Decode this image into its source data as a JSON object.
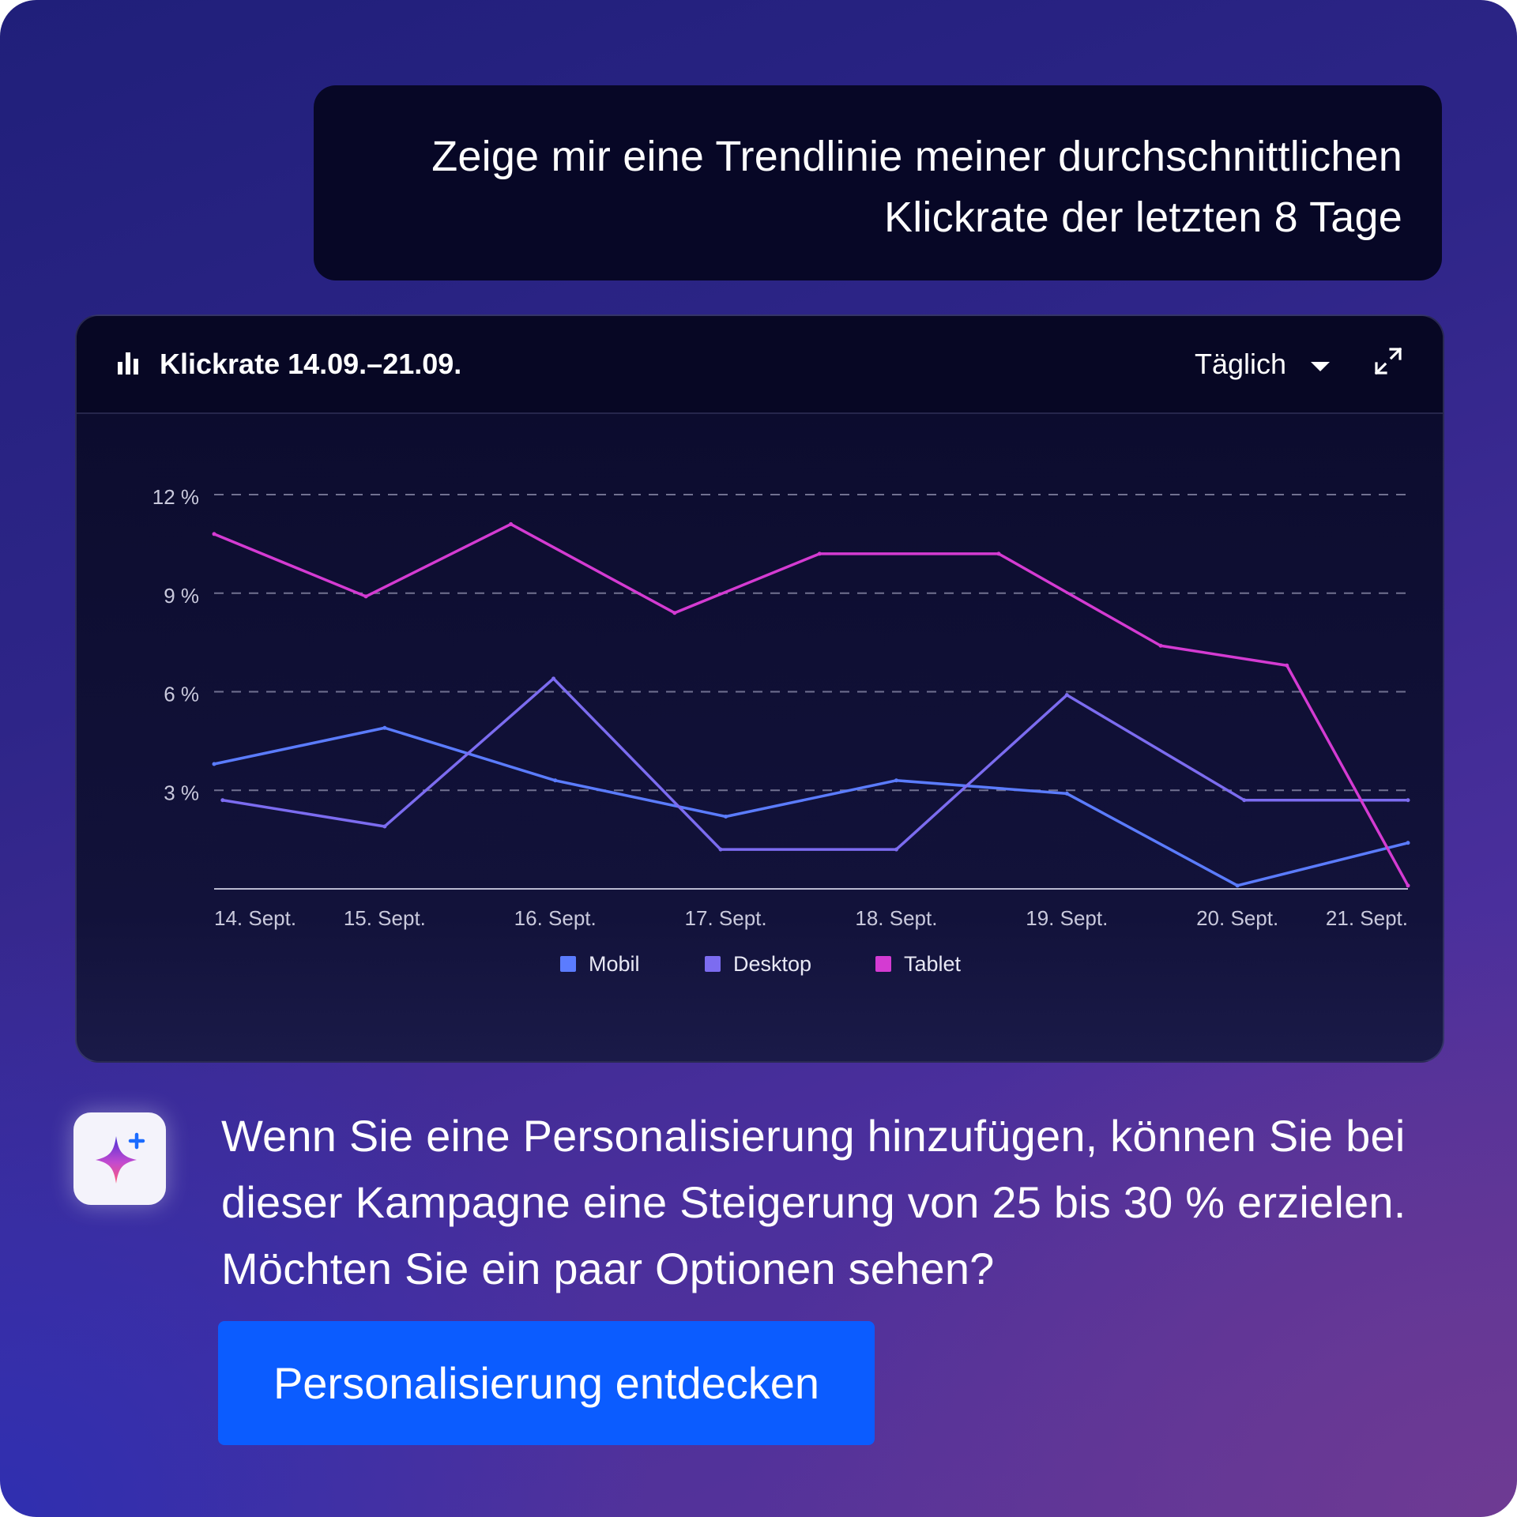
{
  "prompt": {
    "line1": "Zeige mir eine Trendlinie meiner durchschnittlichen",
    "line2": "Klickrate der letzten 8 Tage"
  },
  "chart_card": {
    "title": "Klickrate 14.09.–21.09.",
    "period_label": "Täglich",
    "icons": [
      "bar-chart-icon",
      "chevron-down-icon",
      "expand-icon"
    ]
  },
  "chart_data": {
    "type": "line",
    "title": "Klickrate 14.09.–21.09.",
    "xlabel": "",
    "ylabel": "",
    "categories": [
      "14. Sept.",
      "15. Sept.",
      "16. Sept.",
      "17. Sept.",
      "18. Sept.",
      "19. Sept.",
      "20. Sept.",
      "21. Sept."
    ],
    "y_ticks": [
      "3 %",
      "6 %",
      "9 %",
      "12 %"
    ],
    "ylim": [
      0,
      12
    ],
    "grid": true,
    "legend_position": "bottom-center",
    "series": [
      {
        "name": "Mobil",
        "color": "#5b7cff",
        "x": [
          0,
          1,
          2,
          3,
          4,
          5,
          6,
          7
        ],
        "values": [
          3.8,
          4.9,
          3.3,
          2.2,
          3.3,
          2.9,
          0.1,
          1.4
        ]
      },
      {
        "name": "Desktop",
        "color": "#7c6cf0",
        "x": [
          0.05,
          1.0,
          1.99,
          2.97,
          4.0,
          5.0,
          6.04,
          7.0
        ],
        "values": [
          2.7,
          1.9,
          6.4,
          1.2,
          1.2,
          5.9,
          2.7,
          2.7
        ]
      },
      {
        "name": "Tablet",
        "color": "#d43bd2",
        "x": [
          0,
          0.89,
          1.74,
          2.7,
          3.55,
          4.6,
          5.55,
          6.29,
          7.0
        ],
        "values": [
          10.8,
          8.9,
          11.1,
          8.4,
          10.2,
          10.2,
          7.4,
          6.8,
          0.1
        ]
      }
    ]
  },
  "answer": {
    "text": "Wenn Sie eine Personalisierung hinzufügen, können Sie bei dieser Kampagne eine Steigerung von 25 bis 30 % erzielen. Möchten Sie ein paar Optionen sehen?",
    "icon": "sparkle-icon"
  },
  "cta": {
    "label": "Personalisierung entdecken",
    "color": "#0b5cff"
  }
}
